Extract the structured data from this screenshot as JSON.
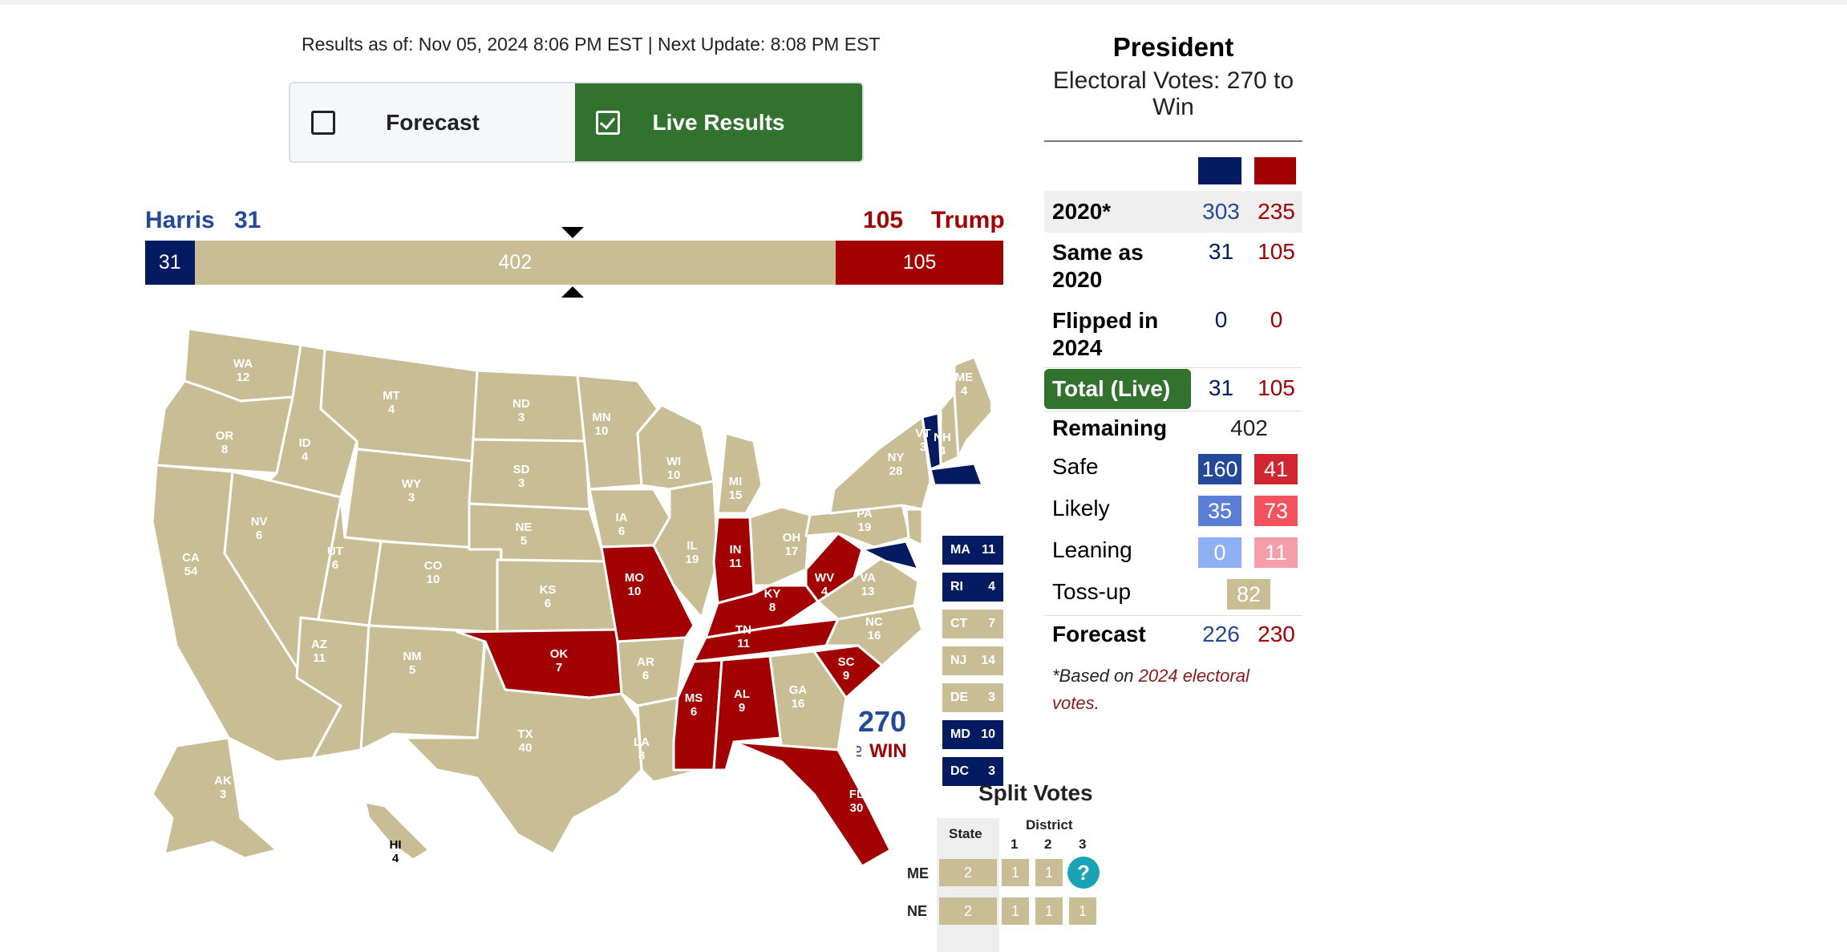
{
  "header": {
    "timestamp": "Results as of: Nov 05, 2024 8:06 PM EST | Next Update: 8:08 PM EST"
  },
  "toggle": {
    "forecast_label": "Forecast",
    "live_label": "Live Results"
  },
  "tally": {
    "dem_name": "Harris",
    "dem_votes": "31",
    "rep_votes": "105",
    "rep_name": "Trump",
    "bar_dem": "31",
    "bar_undecided": "402",
    "bar_rep": "105",
    "bar_fraction": {
      "dem": 0.0576,
      "undecided": 0.7472,
      "rep": 0.1952
    }
  },
  "colors": {
    "dem_solid": "#041a61",
    "rep_solid": "#a20202",
    "undecided": "#c9bd96",
    "live_green": "#31722f",
    "safe_dem": "#244999",
    "likely_dem": "#5b7fd6",
    "lean_dem": "#8fb1f4",
    "safe_rep": "#d22532",
    "likely_rep": "#f3525f",
    "lean_rep": "#f59ea9"
  },
  "states": {
    "WA": "12",
    "OR": "8",
    "CA": "54",
    "ID": "4",
    "NV": "6",
    "MT": "4",
    "WY": "3",
    "UT": "6",
    "AZ": "11",
    "CO": "10",
    "NM": "5",
    "ND": "3",
    "SD": "3",
    "NE": "5",
    "KS": "6",
    "OK": "7",
    "TX": "40",
    "MN": "10",
    "IA": "6",
    "MO": "10",
    "AR": "6",
    "LA": "8",
    "WI": "10",
    "IL": "19",
    "MI": "15",
    "IN": "11",
    "OH": "17",
    "KY": "8",
    "TN": "11",
    "MS": "6",
    "AL": "9",
    "GA": "16",
    "FL": "30",
    "SC": "9",
    "NC": "16",
    "VA": "13",
    "WV": "4",
    "PA": "19",
    "NY": "28",
    "VT": "3",
    "NH": "4",
    "ME": "4",
    "AK": "3",
    "HI": "4"
  },
  "small_states": [
    {
      "code": "MA",
      "ev": "11",
      "party": "dem"
    },
    {
      "code": "RI",
      "ev": "4",
      "party": "dem"
    },
    {
      "code": "CT",
      "ev": "7",
      "party": "tossup"
    },
    {
      "code": "NJ",
      "ev": "14",
      "party": "tossup"
    },
    {
      "code": "DE",
      "ev": "3",
      "party": "tossup"
    },
    {
      "code": "MD",
      "ev": "10",
      "party": "dem"
    },
    {
      "code": "DC",
      "ev": "3",
      "party": "dem"
    }
  ],
  "logo": {
    "number": "270",
    "to": "TO",
    "win": "WIN"
  },
  "split": {
    "title": "Split Votes",
    "state_header": "State",
    "district_header": "District",
    "districts": [
      "1",
      "2",
      "3"
    ],
    "rows": [
      {
        "state": "ME",
        "state_votes": "2",
        "d": [
          "1",
          "1"
        ],
        "d3": "?"
      },
      {
        "state": "NE",
        "state_votes": "2",
        "d": [
          "1",
          "1",
          "1"
        ]
      }
    ]
  },
  "panel": {
    "title": "President",
    "subtitle": "Electoral Votes: 270 to Win",
    "rows": {
      "r2020": {
        "label": "2020*",
        "dem": "303",
        "rep": "235"
      },
      "same": {
        "label": "Same as 2020",
        "dem": "31",
        "rep": "105"
      },
      "flipped": {
        "label": "Flipped in 2024",
        "dem": "0",
        "rep": "0"
      },
      "total": {
        "label": "Total (Live)",
        "dem": "31",
        "rep": "105"
      },
      "remaining": {
        "label": "Remaining",
        "value": "402"
      },
      "safe": {
        "label": "Safe",
        "dem": "160",
        "rep": "41"
      },
      "likely": {
        "label": "Likely",
        "dem": "35",
        "rep": "73"
      },
      "leaning": {
        "label": "Leaning",
        "dem": "0",
        "rep": "11"
      },
      "tossup": {
        "label": "Toss-up",
        "value": "82"
      },
      "forecast": {
        "label": "Forecast",
        "dem": "226",
        "rep": "230"
      }
    },
    "note_prefix": "*Based on ",
    "note_link": "2024 electoral votes",
    "note_suffix": "."
  }
}
